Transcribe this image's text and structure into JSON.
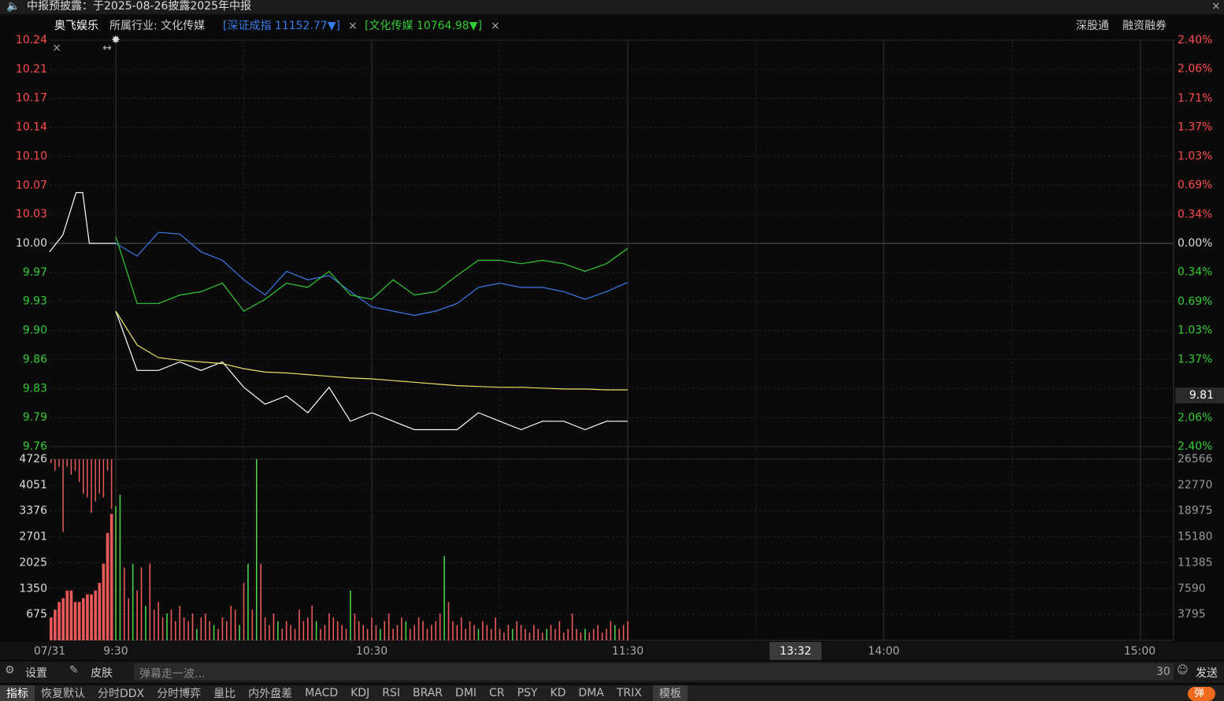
{
  "topbar": {
    "notice": "中报预披露：于2025-08-26披露2025年中报"
  },
  "header": {
    "stock": "奥飞娱乐",
    "industry": "所属行业: 文化传媒",
    "index1": "[深证成指 11152.77▼]",
    "index2": "[文化传媒 10764.98▼]",
    "links": [
      "深股通",
      "融资融券"
    ]
  },
  "chart_data": [
    {
      "type": "line",
      "date": "07/31",
      "x": [
        "9:30",
        "9:35",
        "9:40",
        "9:45",
        "9:50",
        "9:55",
        "10:00",
        "10:05",
        "10:10",
        "10:15",
        "10:20",
        "10:25",
        "10:30",
        "10:35",
        "10:40",
        "10:45",
        "10:50",
        "10:55",
        "11:00",
        "11:05",
        "11:10",
        "11:15",
        "11:20",
        "11:25",
        "11:30"
      ],
      "xticks": [
        "9:30",
        "10:30",
        "11:30",
        "14:00",
        "15:00"
      ],
      "series": [
        {
          "color": "#ffffff",
          "values": [
            9.92,
            9.85,
            9.85,
            9.86,
            9.85,
            9.86,
            9.83,
            9.81,
            9.82,
            9.8,
            9.83,
            9.79,
            9.8,
            9.79,
            9.78,
            9.78,
            9.78,
            9.8,
            9.79,
            9.78,
            9.79,
            9.79,
            9.78,
            9.79,
            9.79
          ]
        },
        {
          "color": "#e8e26a",
          "values": [
            9.92,
            9.88,
            9.865,
            9.862,
            9.86,
            9.858,
            9.852,
            9.848,
            9.847,
            9.845,
            9.843,
            9.841,
            9.84,
            9.838,
            9.836,
            9.834,
            9.832,
            9.831,
            9.83,
            9.83,
            9.829,
            9.828,
            9.828,
            9.827,
            9.827
          ]
        },
        {
          "color": "#3a7bea",
          "axis": "y2",
          "values": [
            0,
            -0.15,
            0.13,
            0.11,
            -0.1,
            -0.2,
            -0.43,
            -0.61,
            -0.33,
            -0.43,
            -0.38,
            -0.57,
            -0.75,
            -0.8,
            -0.85,
            -0.8,
            -0.71,
            -0.52,
            -0.47,
            -0.52,
            -0.52,
            -0.57,
            -0.66,
            -0.57,
            -0.46
          ]
        },
        {
          "color": "#33cc33",
          "axis": "y2",
          "values": [
            0.08,
            -0.71,
            -0.71,
            -0.61,
            -0.57,
            -0.47,
            -0.8,
            -0.66,
            -0.47,
            -0.52,
            -0.33,
            -0.61,
            -0.66,
            -0.43,
            -0.61,
            -0.57,
            -0.38,
            -0.2,
            -0.2,
            -0.24,
            -0.2,
            -0.24,
            -0.33,
            -0.24,
            -0.06
          ]
        }
      ],
      "auction": {
        "color": "#ffffff",
        "x": [
          "9:15",
          "9:17",
          "9:19",
          "9:20",
          "9:21",
          "9:25"
        ],
        "values": [
          9.99,
          10.01,
          10.06,
          10.06,
          10.0,
          10.0
        ]
      },
      "ylim": [
        9.76,
        10.24
      ],
      "yticks": [
        {
          "value": 10.24,
          "label": "10.24"
        },
        {
          "value": 10.2057,
          "label": "10.21"
        },
        {
          "value": 10.1714,
          "label": "10.17"
        },
        {
          "value": 10.1371,
          "label": "10.14"
        },
        {
          "value": 10.1029,
          "label": "10.10"
        },
        {
          "value": 10.0686,
          "label": "10.07"
        },
        {
          "value": 10.0343,
          "label": "10.03"
        },
        {
          "value": 10.0,
          "label": "10.00"
        },
        {
          "value": 9.9657,
          "label": "9.97"
        },
        {
          "value": 9.9314,
          "label": "9.93"
        },
        {
          "value": 9.8971,
          "label": "9.90"
        },
        {
          "value": 9.8629,
          "label": "9.86"
        },
        {
          "value": 9.8286,
          "label": "9.83"
        },
        {
          "value": 9.7943,
          "label": "9.79"
        },
        {
          "value": 9.76,
          "label": "9.76"
        }
      ],
      "y2lim": [
        -2.4,
        2.4
      ],
      "y2ticks": [
        {
          "value": 2.4,
          "label": "2.40%"
        },
        {
          "value": 2.06,
          "label": "2.06%"
        },
        {
          "value": 1.71,
          "label": "1.71%"
        },
        {
          "value": 1.37,
          "label": "1.37%"
        },
        {
          "value": 1.03,
          "label": "1.03%"
        },
        {
          "value": 0.69,
          "label": "0.69%"
        },
        {
          "value": 0.34,
          "label": "0.34%"
        },
        {
          "value": 0,
          "label": "0.00%"
        },
        {
          "value": -0.34,
          "label": "0.34%"
        },
        {
          "value": -0.69,
          "label": "0.69%"
        },
        {
          "value": -1.03,
          "label": "1.03%"
        },
        {
          "value": -1.37,
          "label": "1.37%"
        },
        {
          "value": -2.06,
          "label": "2.06%"
        },
        {
          "value": -2.4,
          "label": "2.40%"
        }
      ],
      "grid": true
    },
    {
      "type": "bar",
      "values": [
        3500,
        3800,
        1900,
        1100,
        2000,
        1300,
        1900,
        900,
        2000,
        800,
        1000,
        600,
        700,
        800,
        500,
        900,
        600,
        500,
        700,
        300,
        600,
        700,
        500,
        400,
        300,
        600,
        500,
        900,
        800,
        400,
        1500,
        2000,
        800,
        4726,
        2000,
        600,
        400,
        700,
        500,
        300,
        500,
        400,
        300,
        800,
        500,
        600,
        900,
        500,
        300,
        400,
        700,
        600,
        500,
        400,
        300,
        1300,
        700,
        500,
        400,
        300,
        600,
        400,
        300,
        500,
        700,
        300,
        400,
        600,
        500,
        300,
        400,
        600,
        500,
        300,
        400,
        500,
        700,
        2200,
        1000,
        500,
        400,
        600,
        300,
        500,
        400,
        300,
        500,
        400,
        300,
        600,
        300,
        200,
        400,
        300,
        500,
        400,
        300,
        200,
        400,
        300,
        200,
        300,
        400,
        300,
        500,
        200,
        300,
        700,
        300,
        200,
        300,
        200,
        300,
        400,
        200,
        300,
        500,
        400,
        300,
        400,
        500
      ],
      "colors": [
        "#4cd04c",
        "#4cd04c",
        "#e85a5a",
        "#e85a5a",
        "#4cd04c",
        "#e85a5a",
        "#e85a5a",
        "#4cd04c",
        "#e85a5a",
        "#e85a5a",
        "#e85a5a",
        "#e85a5a",
        "#4cd04c",
        "#e85a5a",
        "#e85a5a",
        "#e85a5a",
        "#e85a5a",
        "#e85a5a",
        "#e85a5a",
        "#4cd04c",
        "#e85a5a",
        "#e85a5a",
        "#e85a5a",
        "#4cd04c",
        "#e85a5a",
        "#e85a5a",
        "#e85a5a",
        "#e85a5a",
        "#e85a5a",
        "#4cd04c",
        "#e85a5a",
        "#4cd04c",
        "#e85a5a",
        "#4cd04c",
        "#e85a5a",
        "#e85a5a",
        "#e85a5a",
        "#e85a5a",
        "#4cd04c",
        "#e85a5a",
        "#e85a5a",
        "#e85a5a",
        "#e85a5a",
        "#e85a5a",
        "#e85a5a",
        "#e85a5a",
        "#e85a5a",
        "#4cd04c",
        "#e85a5a",
        "#e85a5a",
        "#e85a5a",
        "#e85a5a",
        "#e85a5a",
        "#e85a5a",
        "#e85a5a",
        "#4cd04c",
        "#e85a5a",
        "#e85a5a",
        "#e85a5a",
        "#e85a5a",
        "#e85a5a",
        "#e85a5a",
        "#4cd04c",
        "#e85a5a",
        "#e85a5a",
        "#e85a5a",
        "#e85a5a",
        "#e85a5a",
        "#4cd04c",
        "#e85a5a",
        "#e85a5a",
        "#e85a5a",
        "#e85a5a",
        "#e85a5a",
        "#e85a5a",
        "#e85a5a",
        "#e85a5a",
        "#4cd04c",
        "#e85a5a",
        "#e85a5a",
        "#e85a5a",
        "#e85a5a",
        "#e85a5a",
        "#e85a5a",
        "#e85a5a",
        "#4cd04c",
        "#e85a5a",
        "#e85a5a",
        "#e85a5a",
        "#e85a5a",
        "#e85a5a",
        "#e85a5a",
        "#e85a5a",
        "#4cd04c",
        "#e85a5a",
        "#e85a5a",
        "#e85a5a",
        "#e85a5a",
        "#e85a5a",
        "#e85a5a",
        "#e85a5a",
        "#4cd04c",
        "#e85a5a",
        "#e85a5a",
        "#e85a5a",
        "#e85a5a",
        "#e85a5a",
        "#e85a5a",
        "#e85a5a",
        "#e85a5a",
        "#4cd04c",
        "#e85a5a",
        "#e85a5a",
        "#e85a5a",
        "#e85a5a",
        "#e85a5a",
        "#e85a5a",
        "#4cd04c",
        "#e85a5a",
        "#e85a5a",
        "#e85a5a"
      ],
      "auction_values": [
        600,
        800,
        1000,
        1100,
        1300,
        1300,
        1000,
        1000,
        1100,
        1200,
        1200,
        1300,
        1500,
        2000,
        2800,
        3300
      ],
      "auction_color": "#e85a5a",
      "auction_unmatched": [
        100,
        300,
        200,
        1900,
        200,
        400,
        300,
        600,
        900,
        1000,
        1400,
        1100,
        900,
        1000,
        300,
        1300
      ],
      "ylim": [
        0,
        4726
      ],
      "yticks": [
        675,
        1350,
        2025,
        2701,
        3376,
        4051,
        4726
      ],
      "y2lim": [
        0,
        26566
      ],
      "y2ticks": [
        3795,
        7590,
        11385,
        15180,
        18975,
        22770,
        26566
      ],
      "grid": true
    }
  ],
  "cursor": {
    "time": "13:32",
    "price": "9.81"
  },
  "bottombar": {
    "settings": "设置",
    "skin": "皮肤",
    "placeholder": "弹幕走一波...",
    "count": "30",
    "send": "发送"
  },
  "tabs": [
    "指标",
    "恢复默认",
    "分时DDX",
    "分时博弈",
    "量比",
    "内外盘差",
    "MACD",
    "KDJ",
    "RSI",
    "BRAR",
    "DMI",
    "CR",
    "PSY",
    "KD",
    "DMA",
    "TRIX",
    "模板"
  ],
  "danmu": "弹"
}
